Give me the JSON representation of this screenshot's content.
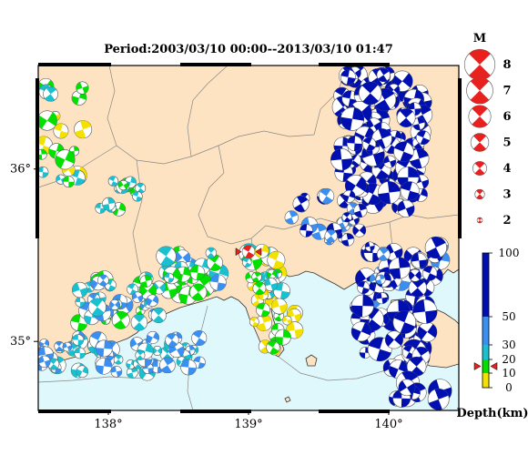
{
  "title": "Period:2003/03/10 00:00--2013/03/10 01:47",
  "map": {
    "lon_range": [
      137.5,
      140.5
    ],
    "lat_range": [
      34.6,
      36.6
    ],
    "lon_ticks": [
      {
        "value": 138,
        "label": "138°"
      },
      {
        "value": 139,
        "label": "139°"
      },
      {
        "value": 140,
        "label": "140°"
      }
    ],
    "lat_ticks": [
      {
        "value": 36,
        "label": "36°"
      },
      {
        "value": 35,
        "label": "35°"
      }
    ],
    "land_color": "#fde3c2",
    "sea_color": "#dff8fb",
    "selected_event": {
      "lon": 139.0,
      "lat": 35.52,
      "depth_km": 15,
      "magnitude": 4.2
    }
  },
  "magnitude_legend": {
    "title": "M",
    "items": [
      {
        "label": "8",
        "magnitude": 8
      },
      {
        "label": "7",
        "magnitude": 7
      },
      {
        "label": "6",
        "magnitude": 6
      },
      {
        "label": "5",
        "magnitude": 5
      },
      {
        "label": "4",
        "magnitude": 4
      },
      {
        "label": "3",
        "magnitude": 3
      },
      {
        "label": "2",
        "magnitude": 2
      }
    ],
    "color": "#e8201e"
  },
  "depth_scale": {
    "title": "Depth(km)",
    "labels": [
      {
        "label": "100",
        "value": 100
      },
      {
        "label": "50",
        "value": 50
      },
      {
        "label": "30",
        "value": 30
      },
      {
        "label": "20",
        "value": 20
      },
      {
        "label": "10",
        "value": 10
      },
      {
        "label": "0",
        "value": 0
      }
    ],
    "bands": [
      {
        "from": 0,
        "to": 10,
        "color": "#f5e100"
      },
      {
        "from": 10,
        "to": 20,
        "color": "#00e100"
      },
      {
        "from": 20,
        "to": 30,
        "color": "#18c0d0"
      },
      {
        "from": 30,
        "to": 50,
        "color": "#3a8ff0"
      },
      {
        "from": 50,
        "to": 100,
        "color": "#0010b0"
      }
    ],
    "marker_depth": 15
  }
}
